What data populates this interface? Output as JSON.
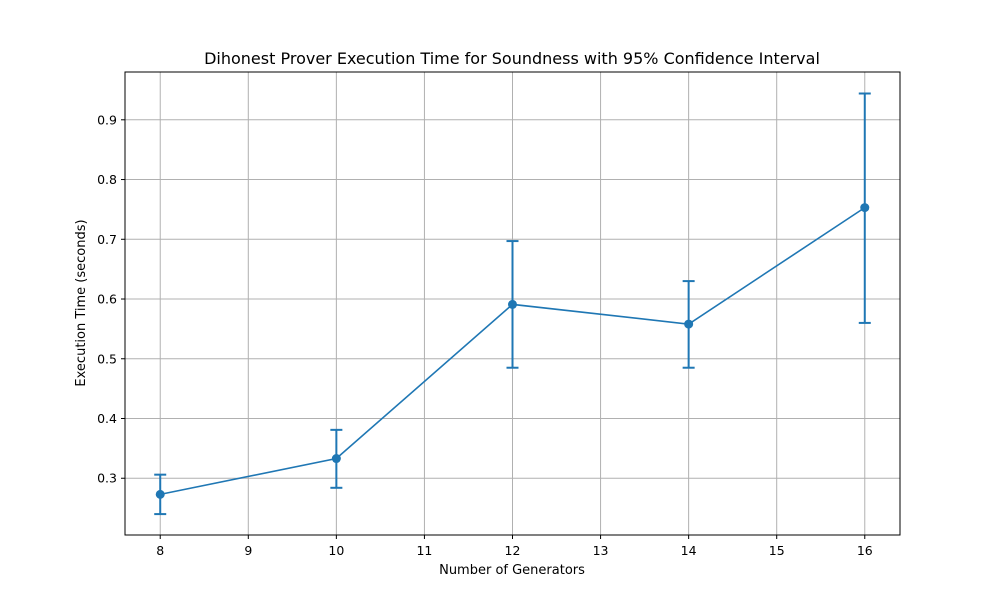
{
  "chart_data": {
    "type": "line",
    "title": "Dihonest Prover Execution Time for Soundness with 95% Confidence Interval",
    "xlabel": "Number of Generators",
    "ylabel": "Execution Time (seconds)",
    "x_ticks": [
      "8",
      "9",
      "10",
      "11",
      "12",
      "13",
      "14",
      "15",
      "16"
    ],
    "y_ticks": [
      "0.3",
      "0.4",
      "0.5",
      "0.6",
      "0.7",
      "0.8",
      "0.9"
    ],
    "xlim": [
      7.6,
      16.4
    ],
    "ylim": [
      0.205,
      0.98
    ],
    "grid": true,
    "series": [
      {
        "color": "#1f77b4",
        "x": [
          8,
          10,
          12,
          14,
          16
        ],
        "y": [
          0.273,
          0.333,
          0.591,
          0.558,
          0.753
        ],
        "ci_lower": [
          0.24,
          0.284,
          0.485,
          0.485,
          0.56
        ],
        "ci_upper": [
          0.306,
          0.381,
          0.697,
          0.63,
          0.944
        ]
      }
    ]
  }
}
